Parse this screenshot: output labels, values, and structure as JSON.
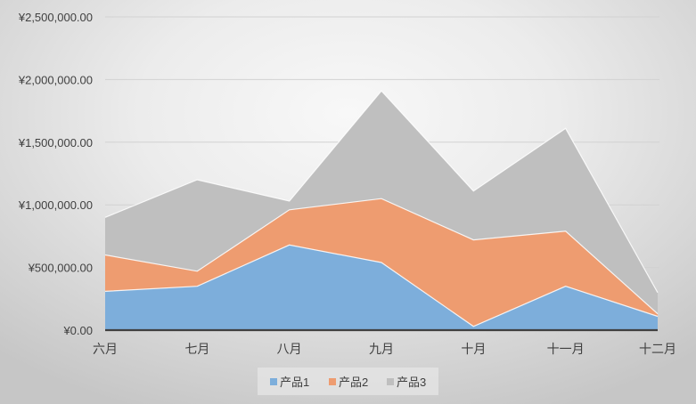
{
  "chart_data": {
    "type": "area",
    "stacked": true,
    "categories": [
      "六月",
      "七月",
      "八月",
      "九月",
      "十月",
      "十一月",
      "十二月"
    ],
    "series": [
      {
        "name": "产品1",
        "color": "#7DAEDB",
        "values": [
          310000,
          350000,
          680000,
          540000,
          30000,
          350000,
          110000
        ]
      },
      {
        "name": "产品2",
        "color": "#EE9C70",
        "values": [
          290000,
          120000,
          280000,
          510000,
          690000,
          440000,
          20000
        ]
      },
      {
        "name": "产品3",
        "color": "#BFBFBF",
        "values": [
          300000,
          730000,
          70000,
          860000,
          390000,
          820000,
          170000
        ]
      }
    ],
    "ylim": [
      0,
      2500000
    ],
    "yticks": {
      "values": [
        0,
        500000,
        1000000,
        1500000,
        2000000,
        2500000
      ],
      "labels": [
        "¥0.00",
        "¥500,000.00",
        "¥1,000,000.00",
        "¥1,500,000.00",
        "¥2,000,000.00",
        "¥2,500,000.00"
      ]
    },
    "grid": true,
    "legend": "bottom"
  },
  "colors": {
    "axis": "#404040",
    "gridline": "#D2D2D2",
    "series_edge": "#FFFFFF"
  }
}
